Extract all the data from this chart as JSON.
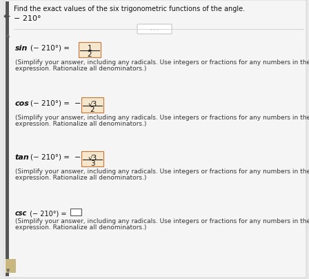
{
  "title": "Find the exact values of the six trigonometric functions of the angle.",
  "angle": "− 210°",
  "bg_color": "#e8e8e8",
  "panel_color": "#f5f5f5",
  "left_bar_color": "#555555",
  "entries": [
    {
      "label": "sin",
      "label_bold": true,
      "angle_str": "(− 210°) = ",
      "frac_num": "1",
      "frac_den": "2",
      "prefix": "",
      "has_sqrt_num": false,
      "is_answer_box": false
    },
    {
      "label": "cos",
      "label_bold": true,
      "angle_str": "(− 210°) = ",
      "frac_num": "√3",
      "frac_den": "2",
      "prefix": "− ",
      "has_sqrt_num": true,
      "is_answer_box": false
    },
    {
      "label": "tan",
      "label_bold": true,
      "angle_str": "(− 210°) = ",
      "frac_num": "√3",
      "frac_den": "3",
      "prefix": "− ",
      "has_sqrt_num": true,
      "is_answer_box": false
    },
    {
      "label": "csc",
      "label_bold": false,
      "angle_str": " (− 210°) = ",
      "frac_num": "",
      "frac_den": "",
      "prefix": "",
      "has_sqrt_num": false,
      "is_answer_box": true
    }
  ],
  "simplify_line1": "(Simplify your answer, including any radicals. Use integers or fractions for any numbers in the",
  "simplify_line2": "expression. Rationalize all denominators.)"
}
